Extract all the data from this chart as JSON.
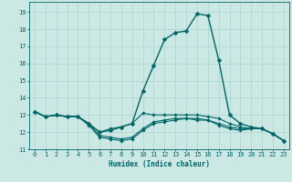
{
  "title": "",
  "xlabel": "Humidex (Indice chaleur)",
  "ylabel": "",
  "bg_color": "#cce8e4",
  "grid_color": "#b0d8d4",
  "line_color": "#006666",
  "xlim": [
    -0.5,
    23.5
  ],
  "ylim": [
    11,
    19.6
  ],
  "yticks": [
    11,
    12,
    13,
    14,
    15,
    16,
    17,
    18,
    19
  ],
  "xticks": [
    0,
    1,
    2,
    3,
    4,
    5,
    6,
    7,
    8,
    9,
    10,
    11,
    12,
    13,
    14,
    15,
    16,
    17,
    18,
    19,
    20,
    21,
    22,
    23
  ],
  "lines": [
    {
      "x": [
        0,
        1,
        2,
        3,
        4,
        5,
        6,
        7,
        8,
        9,
        10,
        11,
        12,
        13,
        14,
        15,
        16,
        17,
        18,
        19,
        20,
        21,
        22,
        23
      ],
      "y": [
        13.2,
        12.9,
        13.0,
        12.9,
        12.9,
        12.5,
        11.8,
        11.7,
        11.6,
        11.7,
        12.2,
        12.6,
        12.7,
        12.8,
        12.8,
        12.8,
        12.7,
        12.5,
        12.3,
        12.2,
        12.2,
        12.2,
        11.9,
        11.5
      ],
      "lw": 0.8,
      "ms": 1.8
    },
    {
      "x": [
        0,
        1,
        2,
        3,
        4,
        5,
        6,
        7,
        8,
        9,
        10,
        11,
        12,
        13,
        14,
        15,
        16,
        17,
        18,
        19,
        20,
        21,
        22,
        23
      ],
      "y": [
        13.2,
        12.9,
        13.0,
        12.9,
        12.9,
        12.5,
        12.0,
        12.1,
        12.3,
        12.5,
        14.4,
        15.9,
        17.4,
        17.8,
        17.9,
        18.9,
        18.8,
        16.2,
        13.0,
        12.5,
        12.3,
        12.2,
        11.9,
        11.5
      ],
      "lw": 1.0,
      "ms": 2.5
    },
    {
      "x": [
        0,
        1,
        2,
        3,
        4,
        5,
        6,
        7,
        8,
        9,
        10,
        11,
        12,
        13,
        14,
        15,
        16,
        17,
        18,
        19,
        20,
        21,
        22,
        23
      ],
      "y": [
        13.2,
        12.9,
        13.0,
        12.9,
        12.9,
        12.4,
        11.7,
        11.6,
        11.5,
        11.6,
        12.1,
        12.5,
        12.6,
        12.7,
        12.8,
        12.7,
        12.7,
        12.4,
        12.2,
        12.1,
        12.2,
        12.2,
        11.9,
        11.5
      ],
      "lw": 0.8,
      "ms": 1.8
    },
    {
      "x": [
        0,
        1,
        2,
        3,
        4,
        5,
        6,
        7,
        8,
        9,
        10,
        11,
        12,
        13,
        14,
        15,
        16,
        17,
        18,
        19,
        20,
        21,
        22,
        23
      ],
      "y": [
        13.2,
        12.9,
        13.0,
        12.9,
        12.9,
        12.5,
        12.0,
        12.2,
        12.3,
        12.5,
        13.1,
        13.0,
        13.0,
        13.0,
        13.0,
        13.0,
        12.9,
        12.8,
        12.5,
        12.3,
        12.2,
        12.2,
        11.9,
        11.5
      ],
      "lw": 0.8,
      "ms": 1.8
    }
  ]
}
